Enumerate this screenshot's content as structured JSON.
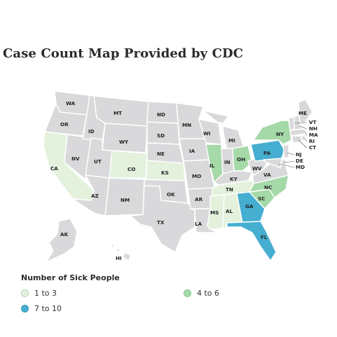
{
  "title": "Case Count Map Provided by CDC",
  "legend": {
    "title": "Number of Sick People",
    "items": [
      {
        "label": "1 to 3",
        "color": "#e3f1dd",
        "border": "#b8d6ad"
      },
      {
        "label": "4 to 6",
        "color": "#a5d9a8",
        "border": "#88c58c"
      },
      {
        "label": "7 to 10",
        "color": "#45aed1",
        "border": "#3396b8"
      }
    ]
  },
  "colors": {
    "none": "#d9d9dc",
    "low": "#e3f1dd",
    "mid": "#a5d9a8",
    "high": "#45aed1"
  },
  "states": {
    "WA": {
      "label": "WA",
      "level": "none"
    },
    "OR": {
      "label": "OR",
      "level": "none"
    },
    "CA": {
      "label": "CA",
      "level": "low"
    },
    "NV": {
      "label": "NV",
      "level": "none"
    },
    "ID": {
      "label": "ID",
      "level": "none"
    },
    "MT": {
      "label": "MT",
      "level": "none"
    },
    "WY": {
      "label": "WY",
      "level": "none"
    },
    "UT": {
      "label": "UT",
      "level": "none"
    },
    "AZ": {
      "label": "AZ",
      "level": "none"
    },
    "CO": {
      "label": "CO",
      "level": "low"
    },
    "NM": {
      "label": "NM",
      "level": "none"
    },
    "ND": {
      "label": "ND",
      "level": "none"
    },
    "SD": {
      "label": "SD",
      "level": "none"
    },
    "NE": {
      "label": "NE",
      "level": "none"
    },
    "KS": {
      "label": "KS",
      "level": "low"
    },
    "OK": {
      "label": "OK",
      "level": "none"
    },
    "TX": {
      "label": "TX",
      "level": "none"
    },
    "MN": {
      "label": "MN",
      "level": "none"
    },
    "IA": {
      "label": "IA",
      "level": "none"
    },
    "MO": {
      "label": "MO",
      "level": "none"
    },
    "AR": {
      "label": "AR",
      "level": "none"
    },
    "LA": {
      "label": "LA",
      "level": "none"
    },
    "WI": {
      "label": "WI",
      "level": "none"
    },
    "IL": {
      "label": "IL",
      "level": "mid"
    },
    "MI": {
      "label": "MI",
      "level": "none"
    },
    "IN": {
      "label": "IN",
      "level": "none"
    },
    "OH": {
      "label": "OH",
      "level": "mid"
    },
    "KY": {
      "label": "KY",
      "level": "none"
    },
    "TN": {
      "label": "TN",
      "level": "low"
    },
    "MS": {
      "label": "MS",
      "level": "low"
    },
    "AL": {
      "label": "AL",
      "level": "low"
    },
    "GA": {
      "label": "GA",
      "level": "high"
    },
    "FL": {
      "label": "FL",
      "level": "high"
    },
    "SC": {
      "label": "SC",
      "level": "mid"
    },
    "NC": {
      "label": "NC",
      "level": "mid"
    },
    "VA": {
      "label": "VA",
      "level": "none"
    },
    "WV": {
      "label": "WV",
      "level": "none"
    },
    "PA": {
      "label": "PA",
      "level": "high"
    },
    "NY": {
      "label": "NY",
      "level": "mid"
    },
    "ME": {
      "label": "ME",
      "level": "none"
    },
    "VT": {
      "label": "VT",
      "level": "none"
    },
    "NH": {
      "label": "NH",
      "level": "none"
    },
    "MA": {
      "label": "MA",
      "level": "none"
    },
    "RI": {
      "label": "RI",
      "level": "none"
    },
    "CT": {
      "label": "CT",
      "level": "none"
    },
    "NJ": {
      "label": "NJ",
      "level": "none"
    },
    "DE": {
      "label": "DE",
      "level": "none"
    },
    "MD": {
      "label": "MD",
      "level": "none"
    },
    "AK": {
      "label": "AK",
      "level": "none"
    },
    "HI": {
      "label": "HI",
      "level": "none"
    }
  }
}
